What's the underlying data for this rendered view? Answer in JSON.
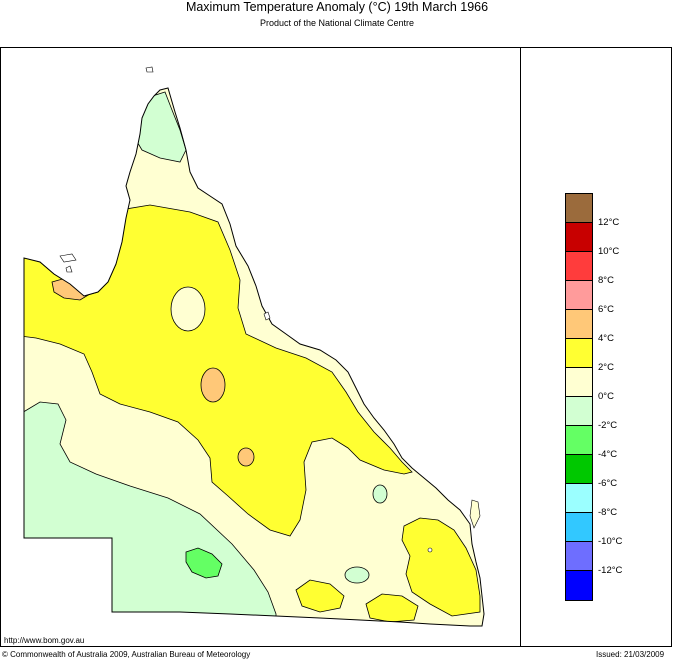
{
  "header": {
    "title": "Maximum Temperature Anomaly (°C)  19th March 1966",
    "subtitle": "Product of the National Climate Centre"
  },
  "legend": {
    "items": [
      {
        "label": "",
        "color": "#9b6b3c"
      },
      {
        "label": "12°C",
        "color": "#c80000"
      },
      {
        "label": "10°C",
        "color": "#ff3c3c"
      },
      {
        "label": "8°C",
        "color": "#ff9b9b"
      },
      {
        "label": "6°C",
        "color": "#ffc878"
      },
      {
        "label": "4°C",
        "color": "#ffff32"
      },
      {
        "label": "2°C",
        "color": "#ffffd2"
      },
      {
        "label": "0°C",
        "color": "#d2ffd2"
      },
      {
        "label": "-2°C",
        "color": "#64ff64"
      },
      {
        "label": "-4°C",
        "color": "#00c800"
      },
      {
        "label": "-6°C",
        "color": "#9bffff"
      },
      {
        "label": "-8°C",
        "color": "#32c8ff"
      },
      {
        "label": "-10°C",
        "color": "#6e6eff"
      },
      {
        "label": "-12°C",
        "color": "#0000ff"
      }
    ]
  },
  "footer": {
    "url": "http://www.bom.gov.au",
    "copyright": "© Commonwealth of Australia 2009, Australian Bureau of Meteorology",
    "issued": "Issued: 21/03/2009"
  }
}
